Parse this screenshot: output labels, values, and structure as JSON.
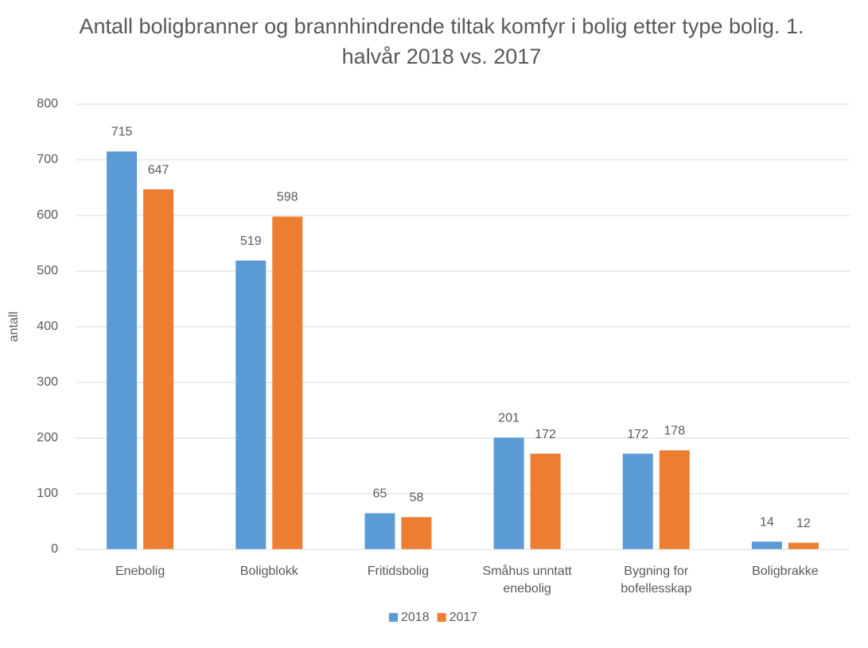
{
  "chart_data": {
    "type": "bar",
    "title": "Antall boligbranner og brannhindrende tiltak komfyr i bolig etter type bolig. 1. halvår 2018 vs. 2017",
    "y_label": "antall",
    "categories": [
      "Enebolig",
      "Boligblokk",
      "Fritidsbolig",
      "Småhus unntatt enebolig",
      "Bygning for bofellesskap",
      "Boligbrakke"
    ],
    "series": [
      {
        "name": "2018",
        "color": "#5b9bd5",
        "values": [
          715,
          519,
          65,
          201,
          172,
          14
        ]
      },
      {
        "name": "2017",
        "color": "#ed7d31",
        "values": [
          647,
          598,
          58,
          172,
          178,
          12
        ]
      }
    ],
    "ylim": [
      0,
      800
    ],
    "yticks": [
      0,
      100,
      200,
      300,
      400,
      500,
      600,
      700,
      800
    ],
    "grid": true,
    "legend": "bottom"
  }
}
